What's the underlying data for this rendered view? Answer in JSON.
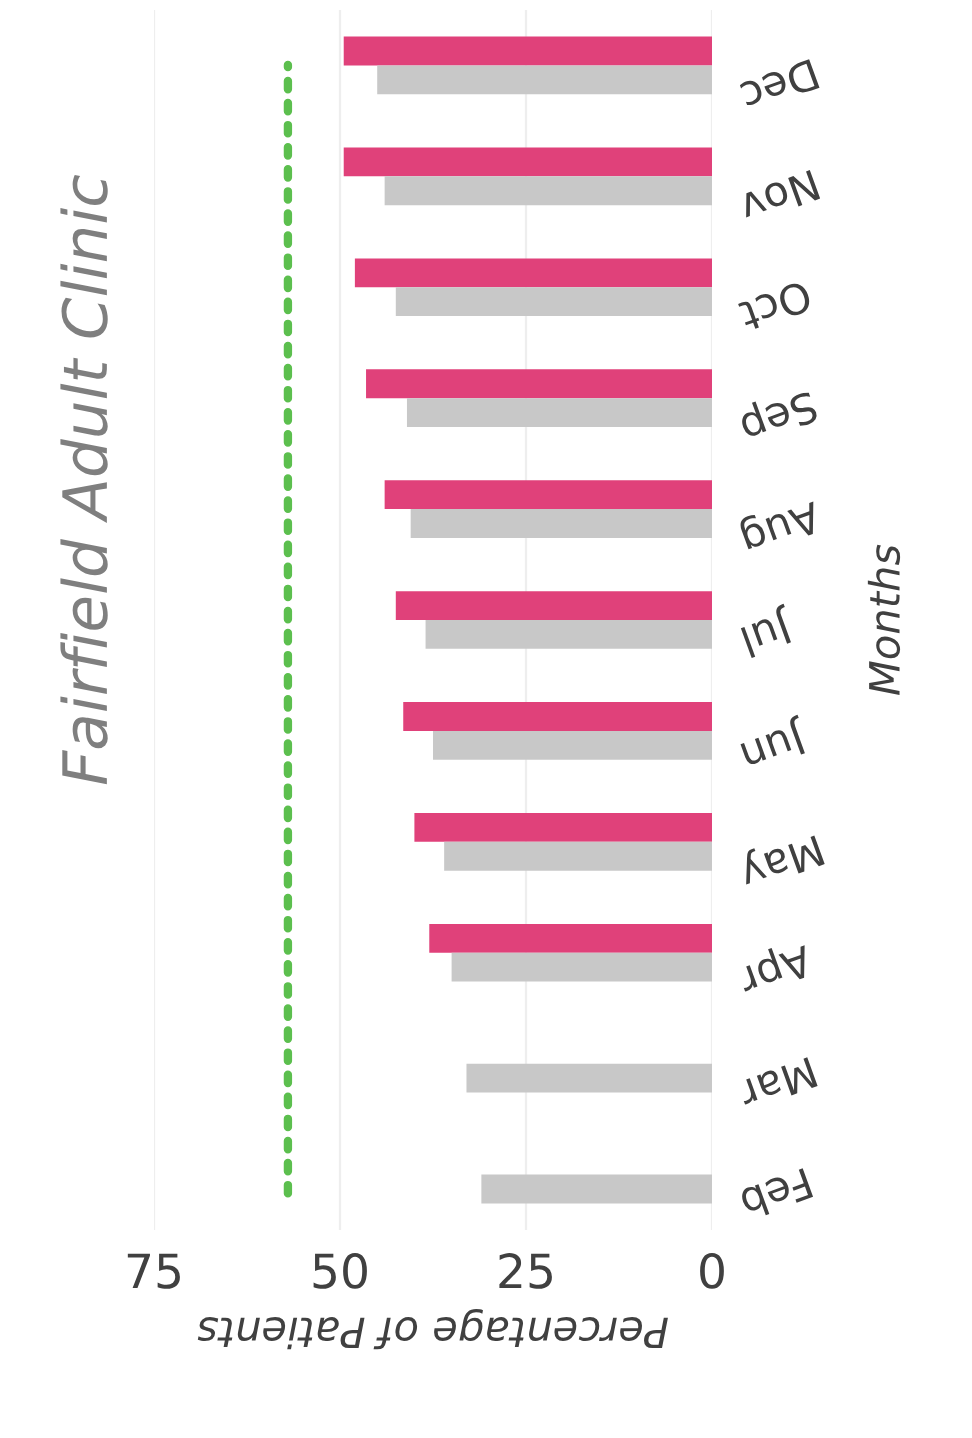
{
  "chart_data": {
    "type": "bar",
    "orientation": "horizontal",
    "title": "Fairfield Adult Clinic",
    "xlabel": "Percentage of Patients",
    "ylabel": "Months",
    "categories": [
      "Dec",
      "Nov",
      "Oct",
      "Sep",
      "Aug",
      "Jul",
      "Jun",
      "May",
      "Apr",
      "Mar",
      "Feb"
    ],
    "series": [
      {
        "color": "#e0417a",
        "values": [
          49.5,
          49.5,
          48,
          46.5,
          44,
          42.5,
          41.5,
          40,
          38,
          null,
          null
        ]
      },
      {
        "color": "#c8c8c8",
        "values": [
          45,
          44,
          42.5,
          41,
          40.5,
          38.5,
          37.5,
          36,
          35,
          33,
          31
        ]
      }
    ],
    "xlim": [
      75,
      0
    ],
    "xticks": [
      75,
      50,
      25,
      0
    ],
    "grid": "x",
    "ref_lines": [
      {
        "axis": "x",
        "value": 57,
        "color": "#5cbf4e",
        "line_style": "dotted"
      }
    ]
  }
}
